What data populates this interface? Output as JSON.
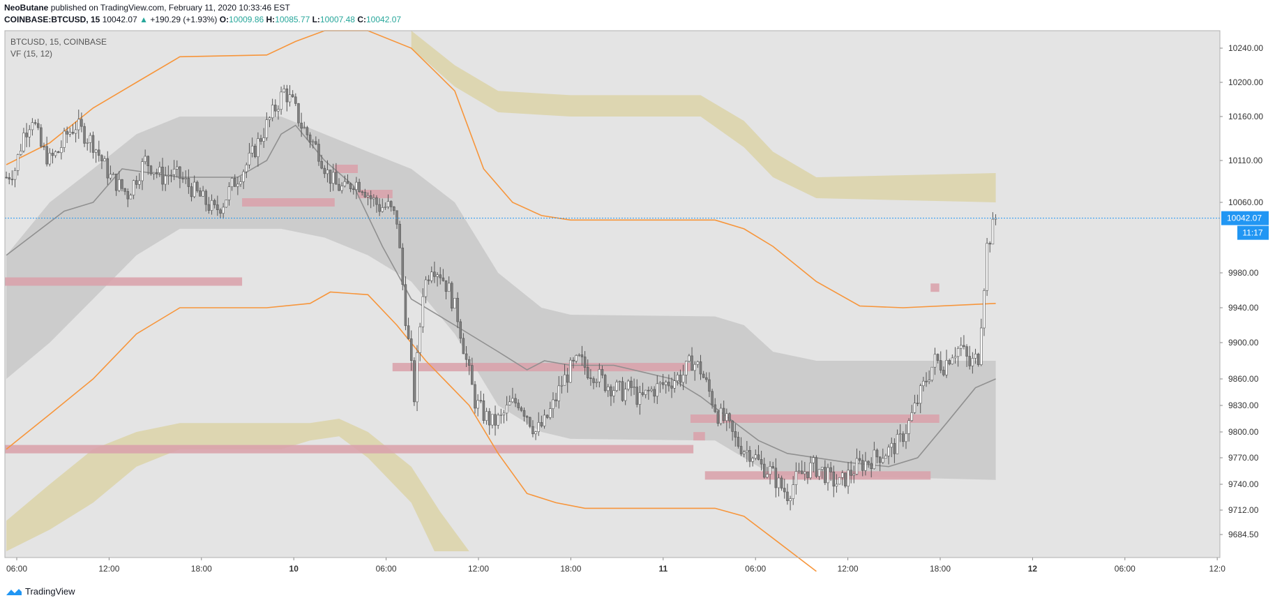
{
  "header": {
    "publisher_user": "NeoButane",
    "publisher_text": "published on TradingView.com, February 11, 2020 10:33:46 EST",
    "symbol": "COINBASE:BTCUSD, 15",
    "last": "10042.07",
    "change": "+190.29 (+1.93%)",
    "o_label": "O:",
    "o": "10009.86",
    "h_label": "H:",
    "h": "10085.77",
    "l_label": "L:",
    "l": "10007.48",
    "c_label": "C:",
    "c": "10042.07"
  },
  "legend": {
    "series": "BTCUSD, 15, COINBASE",
    "indicator": "VF",
    "indicator_params": "(15, 12)"
  },
  "price_tag": {
    "value": "10042.07",
    "countdown": "11:17"
  },
  "footer": {
    "brand": "TradingView"
  },
  "colors": {
    "background": "#e4e4e4",
    "candle_up_body": "#ffffff",
    "candle_down_body": "#808080",
    "wick": "#555555",
    "orange_band": "#f7953a",
    "gray_band": "#c8c8c8",
    "tan_band": "#dcd3a8",
    "red_zone": "#d9a3ac",
    "price_line": "#2196f3",
    "ma_line": "#909090"
  },
  "chart_data": {
    "type": "candlestick",
    "symbol": "BTCUSD",
    "interval": "15",
    "exchange": "COINBASE",
    "y_ticks": [
      "10240.00",
      "10200.00",
      "10160.00",
      "10110.00",
      "10060.00",
      "9980.00",
      "9940.00",
      "9900.00",
      "9860.00",
      "9830.00",
      "9800.00",
      "9770.00",
      "9740.00",
      "9712.00",
      "9684.50"
    ],
    "x_ticks": [
      "06:00",
      "12:00",
      "18:00",
      "10",
      "06:00",
      "12:00",
      "18:00",
      "11",
      "06:00",
      "12:00",
      "18:00",
      "12",
      "06:00",
      "12:0"
    ],
    "x_range": [
      "2020-02-09 06:00",
      "2020-02-12 12:00"
    ],
    "y_range": [
      9664,
      10266
    ],
    "last_price": 10042.07,
    "close_path": [
      [
        0,
        10090
      ],
      [
        3,
        10100
      ],
      [
        6,
        10140
      ],
      [
        9,
        10160
      ],
      [
        12,
        10125
      ],
      [
        15,
        10110
      ],
      [
        18,
        10120
      ],
      [
        21,
        10140
      ],
      [
        24,
        10150
      ],
      [
        27,
        10140
      ],
      [
        30,
        10130
      ],
      [
        33,
        10110
      ],
      [
        36,
        10090
      ],
      [
        39,
        10080
      ],
      [
        42,
        10070
      ],
      [
        45,
        10090
      ],
      [
        48,
        10110
      ],
      [
        51,
        10100
      ],
      [
        54,
        10090
      ],
      [
        57,
        10095
      ],
      [
        60,
        10090
      ],
      [
        63,
        10080
      ],
      [
        66,
        10070
      ],
      [
        69,
        10060
      ],
      [
        72,
        10050
      ],
      [
        75,
        10060
      ],
      [
        78,
        10080
      ],
      [
        81,
        10095
      ],
      [
        84,
        10110
      ],
      [
        87,
        10130
      ],
      [
        90,
        10150
      ],
      [
        93,
        10170
      ],
      [
        96,
        10190
      ],
      [
        99,
        10175
      ],
      [
        102,
        10150
      ],
      [
        105,
        10135
      ],
      [
        108,
        10120
      ],
      [
        111,
        10095
      ],
      [
        114,
        10080
      ],
      [
        117,
        10075
      ],
      [
        120,
        10085
      ],
      [
        123,
        10080
      ],
      [
        126,
        10065
      ],
      [
        129,
        10055
      ],
      [
        132,
        10055
      ],
      [
        135,
        10040
      ],
      [
        138,
        9930
      ],
      [
        141,
        9840
      ],
      [
        144,
        9960
      ],
      [
        147,
        9990
      ],
      [
        150,
        9980
      ],
      [
        153,
        9960
      ],
      [
        156,
        9930
      ],
      [
        159,
        9880
      ],
      [
        162,
        9835
      ],
      [
        165,
        9820
      ],
      [
        168,
        9810
      ],
      [
        171,
        9815
      ],
      [
        174,
        9830
      ],
      [
        177,
        9835
      ],
      [
        180,
        9820
      ],
      [
        183,
        9800
      ],
      [
        186,
        9810
      ],
      [
        189,
        9830
      ],
      [
        192,
        9855
      ],
      [
        195,
        9870
      ],
      [
        198,
        9880
      ],
      [
        201,
        9870
      ],
      [
        204,
        9865
      ],
      [
        207,
        9855
      ],
      [
        210,
        9850
      ],
      [
        213,
        9845
      ],
      [
        216,
        9850
      ],
      [
        219,
        9835
      ],
      [
        222,
        9845
      ],
      [
        225,
        9850
      ],
      [
        228,
        9855
      ],
      [
        231,
        9860
      ],
      [
        234,
        9865
      ],
      [
        237,
        9880
      ],
      [
        240,
        9870
      ],
      [
        243,
        9845
      ],
      [
        246,
        9820
      ],
      [
        249,
        9810
      ],
      [
        252,
        9790
      ],
      [
        255,
        9780
      ],
      [
        258,
        9775
      ],
      [
        261,
        9760
      ],
      [
        264,
        9755
      ],
      [
        267,
        9740
      ],
      [
        270,
        9730
      ],
      [
        273,
        9745
      ],
      [
        276,
        9755
      ],
      [
        279,
        9760
      ],
      [
        282,
        9755
      ],
      [
        285,
        9745
      ],
      [
        288,
        9740
      ],
      [
        291,
        9750
      ],
      [
        294,
        9760
      ],
      [
        297,
        9765
      ],
      [
        300,
        9770
      ],
      [
        303,
        9775
      ],
      [
        306,
        9780
      ],
      [
        309,
        9790
      ],
      [
        312,
        9810
      ],
      [
        315,
        9835
      ],
      [
        318,
        9860
      ],
      [
        321,
        9880
      ],
      [
        324,
        9875
      ],
      [
        327,
        9890
      ],
      [
        330,
        9895
      ],
      [
        333,
        9875
      ],
      [
        336,
        9885
      ],
      [
        339,
        10010
      ],
      [
        342,
        10042.07
      ]
    ],
    "total_bars": 420,
    "moving_average": [
      [
        0,
        10000
      ],
      [
        20,
        10050
      ],
      [
        30,
        10060
      ],
      [
        40,
        10100
      ],
      [
        60,
        10090
      ],
      [
        80,
        10090
      ],
      [
        90,
        10110
      ],
      [
        95,
        10140
      ],
      [
        100,
        10150
      ],
      [
        110,
        10110
      ],
      [
        120,
        10080
      ],
      [
        130,
        10010
      ],
      [
        140,
        9950
      ],
      [
        155,
        9920
      ],
      [
        170,
        9890
      ],
      [
        180,
        9870
      ],
      [
        186,
        9880
      ],
      [
        195,
        9875
      ],
      [
        210,
        9875
      ],
      [
        230,
        9860
      ],
      [
        240,
        9840
      ],
      [
        250,
        9815
      ],
      [
        260,
        9790
      ],
      [
        270,
        9775
      ],
      [
        290,
        9765
      ],
      [
        305,
        9760
      ],
      [
        315,
        9770
      ],
      [
        325,
        9810
      ],
      [
        335,
        9850
      ],
      [
        342,
        9860
      ]
    ],
    "upper_orange": [
      [
        0,
        10105
      ],
      [
        15,
        10130
      ],
      [
        30,
        10170
      ],
      [
        45,
        10200
      ],
      [
        60,
        10230
      ],
      [
        90,
        10232
      ],
      [
        100,
        10250
      ],
      [
        110,
        10266
      ],
      [
        125,
        10266
      ],
      [
        140,
        10240
      ],
      [
        155,
        10190
      ],
      [
        165,
        10100
      ],
      [
        175,
        10060
      ],
      [
        185,
        10045
      ],
      [
        195,
        10040
      ],
      [
        245,
        10040
      ],
      [
        255,
        10030
      ],
      [
        265,
        10010
      ],
      [
        280,
        9970
      ],
      [
        295,
        9942
      ],
      [
        310,
        9940
      ],
      [
        342,
        9945
      ]
    ],
    "mid_orange": [
      [
        0,
        9780
      ],
      [
        15,
        9820
      ],
      [
        30,
        9860
      ],
      [
        45,
        9910
      ],
      [
        60,
        9940
      ],
      [
        90,
        9940
      ],
      [
        105,
        9945
      ],
      [
        112,
        9958
      ],
      [
        125,
        9955
      ],
      [
        135,
        9920
      ],
      [
        145,
        9880
      ],
      [
        160,
        9830
      ],
      [
        170,
        9775
      ],
      [
        180,
        9730
      ],
      [
        190,
        9720
      ],
      [
        200,
        9714
      ],
      [
        245,
        9714
      ],
      [
        255,
        9705
      ],
      [
        265,
        9680
      ],
      [
        280,
        9640
      ]
    ],
    "gray_band_upper": [
      [
        0,
        10000
      ],
      [
        15,
        10060
      ],
      [
        30,
        10100
      ],
      [
        45,
        10140
      ],
      [
        60,
        10160
      ],
      [
        95,
        10160
      ],
      [
        110,
        10140
      ],
      [
        125,
        10120
      ],
      [
        140,
        10100
      ],
      [
        155,
        10060
      ],
      [
        170,
        9980
      ],
      [
        185,
        9940
      ],
      [
        195,
        9932
      ],
      [
        245,
        9930
      ],
      [
        255,
        9920
      ],
      [
        265,
        9890
      ],
      [
        280,
        9880
      ],
      [
        342,
        9880
      ]
    ],
    "gray_band_lower": [
      [
        0,
        9860
      ],
      [
        15,
        9900
      ],
      [
        30,
        9950
      ],
      [
        45,
        10000
      ],
      [
        60,
        10030
      ],
      [
        95,
        10030
      ],
      [
        110,
        10020
      ],
      [
        125,
        10000
      ],
      [
        140,
        9970
      ],
      [
        155,
        9910
      ],
      [
        170,
        9830
      ],
      [
        185,
        9800
      ],
      [
        195,
        9792
      ],
      [
        245,
        9790
      ],
      [
        255,
        9770
      ],
      [
        265,
        9750
      ],
      [
        280,
        9750
      ],
      [
        342,
        9745
      ]
    ],
    "tan_band_upper": [
      [
        0,
        9700
      ],
      [
        15,
        9740
      ],
      [
        30,
        9780
      ],
      [
        45,
        9800
      ],
      [
        60,
        9810
      ],
      [
        95,
        9810
      ],
      [
        105,
        9810
      ],
      [
        115,
        9815
      ],
      [
        125,
        9800
      ],
      [
        140,
        9760
      ],
      [
        150,
        9710
      ],
      [
        160,
        9664
      ]
    ],
    "tan_band_lower": [
      [
        0,
        9664
      ],
      [
        15,
        9690
      ],
      [
        30,
        9720
      ],
      [
        45,
        9760
      ],
      [
        60,
        9780
      ],
      [
        95,
        9780
      ],
      [
        105,
        9790
      ],
      [
        115,
        9795
      ],
      [
        125,
        9770
      ],
      [
        140,
        9720
      ],
      [
        148,
        9664
      ]
    ],
    "tan_band2_upper": [
      [
        140,
        10266
      ],
      [
        155,
        10220
      ],
      [
        170,
        10190
      ],
      [
        195,
        10185
      ],
      [
        240,
        10185
      ],
      [
        255,
        10155
      ],
      [
        265,
        10120
      ],
      [
        280,
        10090
      ],
      [
        342,
        10095
      ]
    ],
    "tan_band2_lower": [
      [
        140,
        10240
      ],
      [
        155,
        10195
      ],
      [
        170,
        10165
      ],
      [
        195,
        10160
      ],
      [
        240,
        10160
      ],
      [
        255,
        10125
      ],
      [
        265,
        10090
      ],
      [
        280,
        10065
      ],
      [
        342,
        10060
      ]
    ],
    "red_zones": [
      {
        "x0": 0,
        "x1": 82,
        "y": 9970
      },
      {
        "x0": 82,
        "x1": 114,
        "y": 10060
      },
      {
        "x0": 114,
        "x1": 122,
        "y": 10100
      },
      {
        "x0": 122,
        "x1": 134,
        "y": 10070
      },
      {
        "x0": 0,
        "x1": 238,
        "y": 9780
      },
      {
        "x0": 134,
        "x1": 237,
        "y": 9873
      },
      {
        "x0": 237,
        "x1": 323,
        "y": 9815
      },
      {
        "x0": 238,
        "x1": 242,
        "y": 9795
      },
      {
        "x0": 242,
        "x1": 320,
        "y": 9750
      },
      {
        "x0": 320,
        "x1": 323,
        "y": 9963
      }
    ]
  }
}
